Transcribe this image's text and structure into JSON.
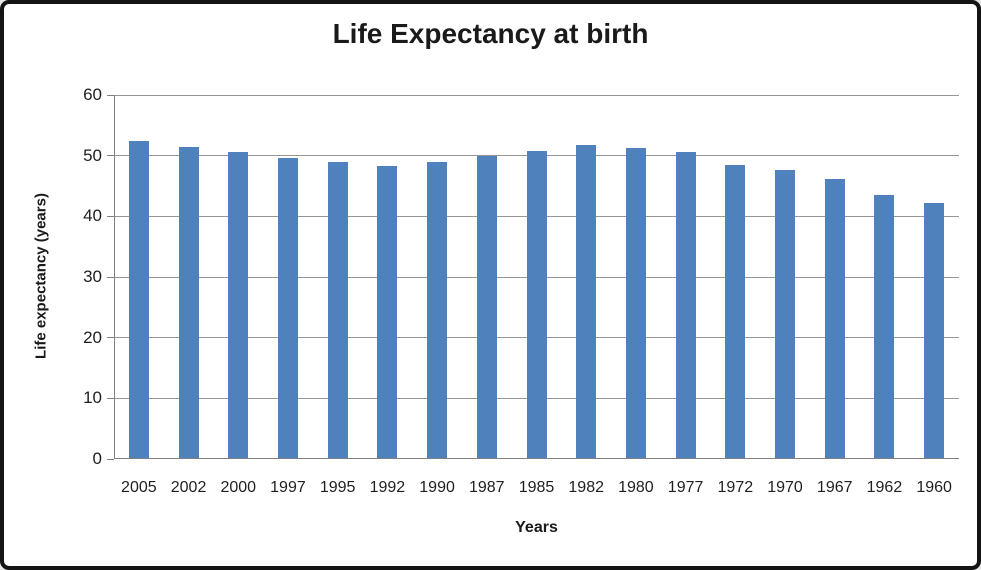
{
  "chart_data": {
    "type": "bar",
    "title": "Life Expectancy at birth",
    "xlabel": "Years",
    "ylabel": "Life expectancy (years)",
    "categories": [
      "2005",
      "2002",
      "2000",
      "1997",
      "1995",
      "1992",
      "1990",
      "1987",
      "1985",
      "1982",
      "1980",
      "1977",
      "1972",
      "1970",
      "1967",
      "1962",
      "1960"
    ],
    "values": [
      52.5,
      51.4,
      50.6,
      49.6,
      49.0,
      48.3,
      48.9,
      50.0,
      50.7,
      51.7,
      51.3,
      50.6,
      48.5,
      47.7,
      46.2,
      43.5,
      42.2
    ],
    "ylim": [
      0,
      60
    ],
    "yticks": [
      0,
      10,
      20,
      30,
      40,
      50,
      60
    ],
    "grid": true,
    "legend": "none",
    "colors": {
      "bar": "#4F81BD",
      "gridline": "#969696",
      "axis": "#808080",
      "text": "#1f1f1f",
      "frame_border": "#141414",
      "background": "#ffffff"
    }
  }
}
